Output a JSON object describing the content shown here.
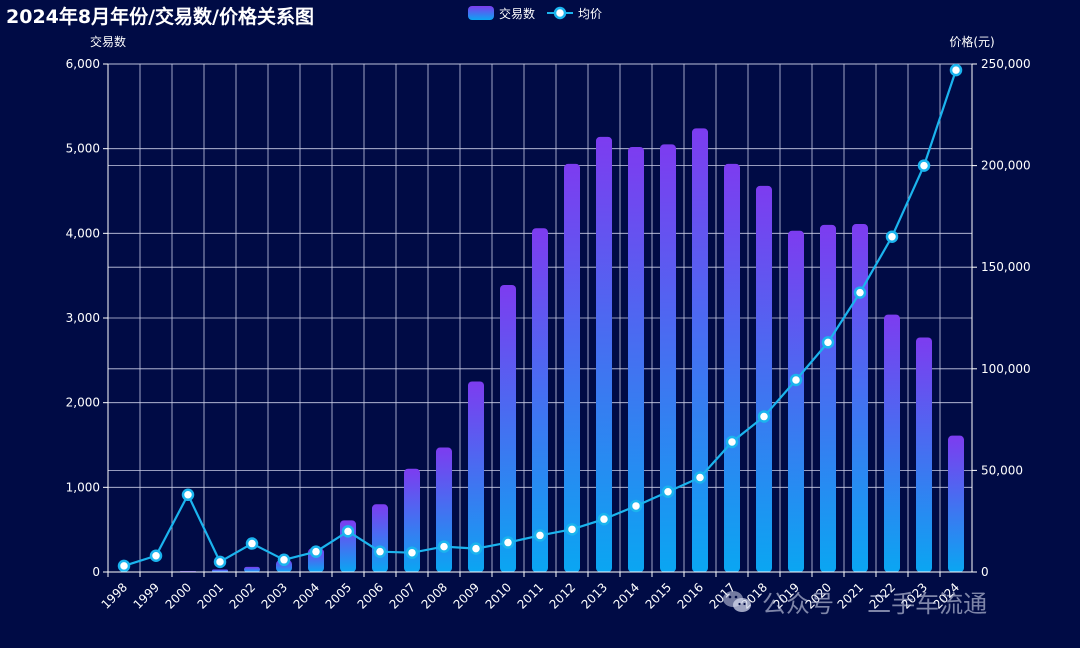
{
  "chart_data": {
    "type": "bar+line",
    "title": "2024年8月年份/交易数/价格关系图",
    "categories": [
      "1998",
      "1999",
      "2000",
      "2001",
      "2002",
      "2003",
      "2004",
      "2005",
      "2006",
      "2007",
      "2008",
      "2009",
      "2010",
      "2011",
      "2012",
      "2013",
      "2014",
      "2015",
      "2016",
      "2017",
      "2018",
      "2019",
      "2020",
      "2021",
      "2022",
      "2023",
      "2024"
    ],
    "series": [
      {
        "name": "交易数",
        "type": "bar",
        "axis": "left",
        "values": [
          3,
          5,
          10,
          30,
          60,
          140,
          280,
          610,
          800,
          1220,
          1470,
          2250,
          3390,
          4060,
          4820,
          5140,
          5020,
          5050,
          5240,
          4820,
          4560,
          4030,
          4100,
          4110,
          3040,
          2770,
          1610
        ]
      },
      {
        "name": "均价",
        "type": "line",
        "axis": "right",
        "values": [
          3000,
          8000,
          38000,
          5000,
          14000,
          6000,
          10000,
          20000,
          10000,
          9500,
          12500,
          11500,
          14500,
          18000,
          21000,
          26000,
          32500,
          39500,
          46500,
          64000,
          76500,
          94500,
          113000,
          137500,
          165000,
          200000,
          247000
        ]
      }
    ],
    "ylabel": "交易数",
    "ylabel_right": "价格(元)",
    "ylim": [
      0,
      6000
    ],
    "ylim_right": [
      0,
      250000
    ],
    "yticks": [
      "0",
      "1,000",
      "2,000",
      "3,000",
      "4,000",
      "5,000",
      "6,000"
    ],
    "yticks_right": [
      "0",
      "50,000",
      "100,000",
      "150,000",
      "200,000",
      "250,000"
    ],
    "grid": true,
    "legend": "top-center"
  },
  "colors": {
    "background": "#000b45",
    "bar_top": "#7d3cf0",
    "bar_bottom": "#0aa6f2",
    "line": "#1bb4ee",
    "grid": "#c9cde6"
  },
  "watermark": {
    "icon": "wechat-icon",
    "left_text": "公众号",
    "separator": "·",
    "right_text": "二手车流通"
  }
}
